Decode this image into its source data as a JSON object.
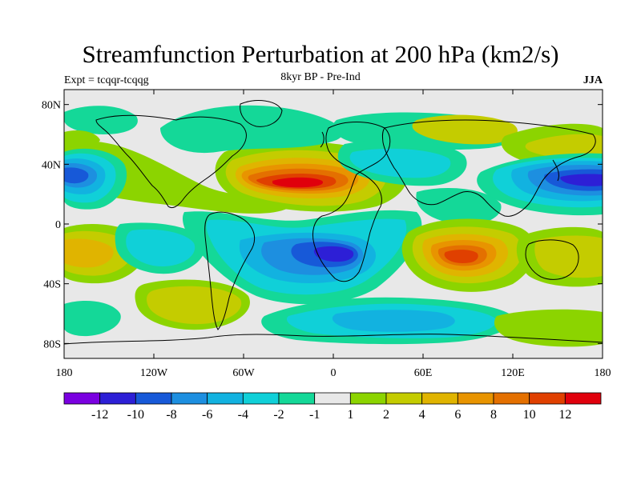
{
  "title": "Streamfunction Perturbation at 200 hPa (km2/s)",
  "left_subtitle": "Expt = tcqqr-tcqqg",
  "center_subtitle": "8kyr BP - Pre-Ind",
  "right_subtitle": "JJA",
  "lat_labels": [
    "80N",
    "40N",
    "0",
    "40S",
    "80S"
  ],
  "lon_labels": [
    "180",
    "120W",
    "60W",
    "0",
    "60E",
    "120E",
    "180"
  ],
  "colorbar": {
    "colors": [
      "#7a00e0",
      "#2d1fd6",
      "#1759d8",
      "#1d8fe0",
      "#12b2e0",
      "#10d0d8",
      "#14d898",
      "#e8e8e8",
      "#8cd400",
      "#c4cc00",
      "#e0b400",
      "#e89400",
      "#e47000",
      "#e04000",
      "#e0000c"
    ],
    "labels": [
      "-12",
      "-10",
      "-8",
      "-6",
      "-4",
      "-2",
      "-1",
      "1",
      "2",
      "4",
      "6",
      "8",
      "10",
      "12"
    ]
  },
  "fields": [
    {
      "region": "N Pacific west negative center",
      "lon": -175,
      "lat": 30,
      "level": -9
    },
    {
      "region": "Atlantic/N Africa positive center",
      "lon": -30,
      "lat": 28,
      "level": 12
    },
    {
      "region": "W Pacific negative center",
      "lon": 160,
      "lat": 28,
      "level": -9
    },
    {
      "region": "South Atlantic negative center",
      "lon": 5,
      "lat": -20,
      "level": -9
    },
    {
      "region": "Indian Ocean positive center",
      "lon": 80,
      "lat": -23,
      "level": 11
    },
    {
      "region": "SE Pacific positive",
      "lon": -165,
      "lat": -20,
      "level": 5
    },
    {
      "region": "S Pacific positive",
      "lon": -105,
      "lat": -50,
      "level": 3
    },
    {
      "region": "Southern Ocean negative band",
      "lon": 60,
      "lat": -55,
      "level": -3
    },
    {
      "region": "Arctic Atlantic sector",
      "lon": -40,
      "lat": 65,
      "level": -3
    },
    {
      "region": "E Asia positive",
      "lon": 120,
      "lat": 55,
      "level": 3
    }
  ]
}
